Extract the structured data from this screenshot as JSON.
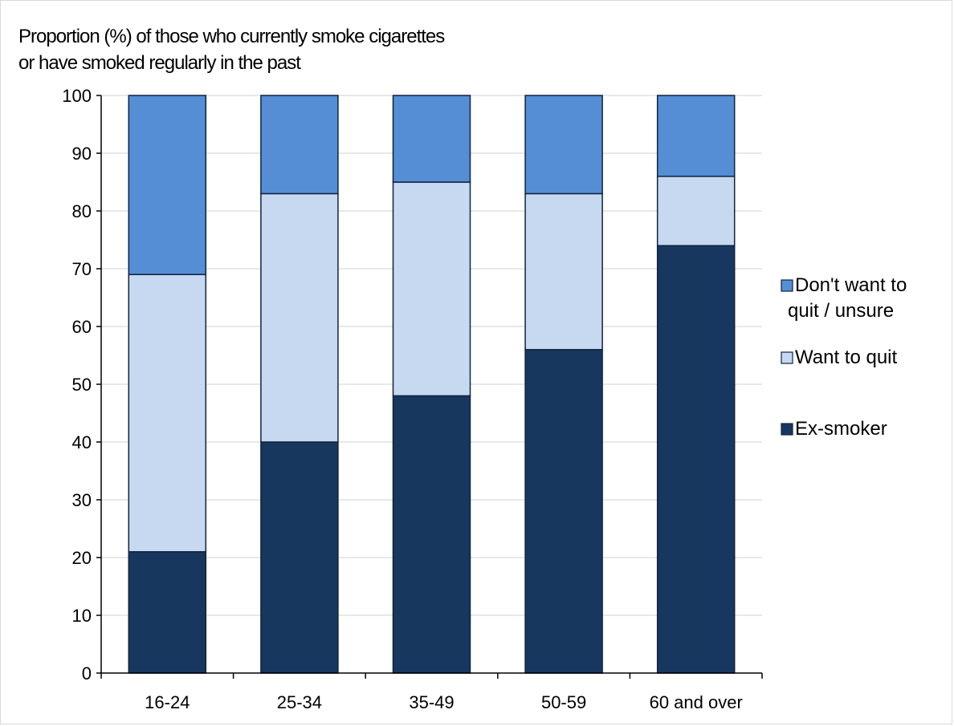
{
  "chart_data": {
    "type": "bar",
    "stacked": true,
    "title_lines": [
      "Proportion (%) of those who  currently smoke cigarettes",
      "or have smoked regularly in the past"
    ],
    "xlabel": "",
    "ylabel": "",
    "ylim": [
      0,
      100
    ],
    "yticks": [
      0,
      10,
      20,
      30,
      40,
      50,
      60,
      70,
      80,
      90,
      100
    ],
    "grid": true,
    "legend_position": "right",
    "categories": [
      "16-24",
      "25-34",
      "35-49",
      "50-59",
      "60 and over"
    ],
    "series": [
      {
        "name": "Ex-smoker",
        "color": "#17375e",
        "values": [
          21,
          40,
          48,
          56,
          74
        ]
      },
      {
        "name": "Want to quit",
        "color": "#c6d9f1",
        "values": [
          48,
          43,
          37,
          27,
          12
        ]
      },
      {
        "name": "Don't want to quit / unsure",
        "color": "#558ed5",
        "values": [
          31,
          17,
          15,
          17,
          14
        ]
      }
    ],
    "legend": [
      {
        "series": 2,
        "lines": [
          "Don't want to",
          "quit / unsure"
        ]
      },
      {
        "series": 1,
        "lines": [
          "Want to quit"
        ]
      },
      {
        "series": 0,
        "lines": [
          "Ex-smoker"
        ]
      }
    ]
  }
}
